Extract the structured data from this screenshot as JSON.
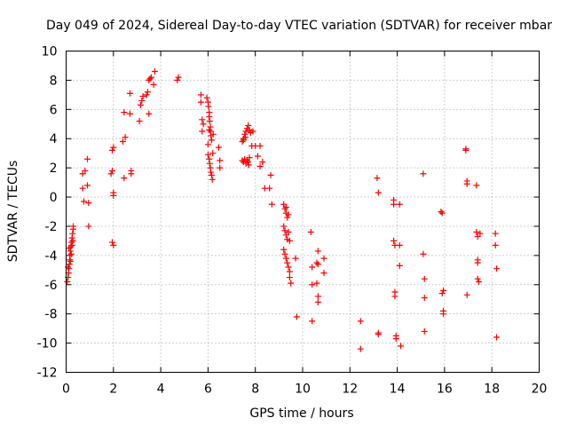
{
  "chart_data": {
    "type": "scatter",
    "title": "Day 049 of 2024, Sidereal Day-to-day VTEC variation (SDTVAR) for receiver mbar",
    "xlabel": "GPS time / hours",
    "ylabel": "SDTVAR / TECUs",
    "xlim": [
      0,
      20
    ],
    "ylim": [
      -12,
      10
    ],
    "xticks": [
      0,
      2,
      4,
      6,
      8,
      10,
      12,
      14,
      16,
      18,
      20
    ],
    "yticks": [
      -12,
      -10,
      -8,
      -6,
      -4,
      -2,
      0,
      2,
      4,
      6,
      8,
      10
    ],
    "grid": true,
    "marker": "+",
    "color": "#ff0000",
    "series": [
      {
        "name": "SDTVAR",
        "points": [
          [
            0.05,
            -5.8
          ],
          [
            0.08,
            -5.5
          ],
          [
            0.1,
            -5.2
          ],
          [
            0.12,
            -4.9
          ],
          [
            0.14,
            -4.6
          ],
          [
            0.15,
            -4.3
          ],
          [
            0.16,
            -4.0
          ],
          [
            0.18,
            -3.7
          ],
          [
            0.2,
            -3.4
          ],
          [
            0.22,
            -3.1
          ],
          [
            0.25,
            -2.8
          ],
          [
            0.27,
            -2.5
          ],
          [
            0.3,
            -2.2
          ],
          [
            0.3,
            -2.0
          ],
          [
            0.12,
            -3.5
          ],
          [
            0.18,
            -4.4
          ],
          [
            0.22,
            -3.9
          ],
          [
            0.25,
            -3.3
          ],
          [
            0.08,
            -4.8
          ],
          [
            0.28,
            -3.0
          ],
          [
            0.7,
            0.6
          ],
          [
            0.7,
            1.6
          ],
          [
            0.75,
            -0.3
          ],
          [
            0.8,
            1.8
          ],
          [
            0.9,
            0.8
          ],
          [
            0.9,
            2.6
          ],
          [
            0.95,
            -0.4
          ],
          [
            0.95,
            -2.0
          ],
          [
            1.9,
            1.6
          ],
          [
            1.95,
            1.8
          ],
          [
            1.95,
            -3.1
          ],
          [
            2.0,
            -3.3
          ],
          [
            2.0,
            0.1
          ],
          [
            2.0,
            0.3
          ],
          [
            1.95,
            3.2
          ],
          [
            2.0,
            3.4
          ],
          [
            2.4,
            3.8
          ],
          [
            2.45,
            1.3
          ],
          [
            2.45,
            5.8
          ],
          [
            2.5,
            4.1
          ],
          [
            2.7,
            5.7
          ],
          [
            2.7,
            7.1
          ],
          [
            2.75,
            1.6
          ],
          [
            2.75,
            1.8
          ],
          [
            3.1,
            5.2
          ],
          [
            3.15,
            6.3
          ],
          [
            3.2,
            6.6
          ],
          [
            3.25,
            6.9
          ],
          [
            3.4,
            7.0
          ],
          [
            3.45,
            7.2
          ],
          [
            3.5,
            5.7
          ],
          [
            3.5,
            8.0
          ],
          [
            3.55,
            8.1
          ],
          [
            3.6,
            8.2
          ],
          [
            3.7,
            7.7
          ],
          [
            3.75,
            8.6
          ],
          [
            4.7,
            8.0
          ],
          [
            4.75,
            8.2
          ],
          [
            5.7,
            7.0
          ],
          [
            5.7,
            6.5
          ],
          [
            5.75,
            5.3
          ],
          [
            5.75,
            4.5
          ],
          [
            5.8,
            5.0
          ],
          [
            5.95,
            6.8
          ],
          [
            6.0,
            6.5
          ],
          [
            6.02,
            6.2
          ],
          [
            6.05,
            5.8
          ],
          [
            6.05,
            5.5
          ],
          [
            6.07,
            5.2
          ],
          [
            6.1,
            4.8
          ],
          [
            6.1,
            4.5
          ],
          [
            6.12,
            4.2
          ],
          [
            6.15,
            3.9
          ],
          [
            6.0,
            3.6
          ],
          [
            6.0,
            2.9
          ],
          [
            6.05,
            2.6
          ],
          [
            6.07,
            2.3
          ],
          [
            6.1,
            2.0
          ],
          [
            6.12,
            1.7
          ],
          [
            6.15,
            1.5
          ],
          [
            6.18,
            1.2
          ],
          [
            6.2,
            3.0
          ],
          [
            6.22,
            4.3
          ],
          [
            6.05,
            4.6
          ],
          [
            6.45,
            3.4
          ],
          [
            6.5,
            2.5
          ],
          [
            6.5,
            2.0
          ],
          [
            7.45,
            3.8
          ],
          [
            7.5,
            4.0
          ],
          [
            7.5,
            2.4
          ],
          [
            7.55,
            4.3
          ],
          [
            7.55,
            2.6
          ],
          [
            7.6,
            4.5
          ],
          [
            7.6,
            2.3
          ],
          [
            7.65,
            4.7
          ],
          [
            7.65,
            2.5
          ],
          [
            7.7,
            4.9
          ],
          [
            7.7,
            2.4
          ],
          [
            7.72,
            2.2
          ],
          [
            7.75,
            4.6
          ],
          [
            7.75,
            2.7
          ],
          [
            7.45,
            2.5
          ],
          [
            7.5,
            3.9
          ],
          [
            7.8,
            4.4
          ],
          [
            7.58,
            4.1
          ],
          [
            7.85,
            3.5
          ],
          [
            7.9,
            4.5
          ],
          [
            8.0,
            3.5
          ],
          [
            8.1,
            2.8
          ],
          [
            8.2,
            2.1
          ],
          [
            8.2,
            3.5
          ],
          [
            8.3,
            2.4
          ],
          [
            8.4,
            0.6
          ],
          [
            8.6,
            0.6
          ],
          [
            8.65,
            1.5
          ],
          [
            8.7,
            -0.5
          ],
          [
            9.2,
            -0.5
          ],
          [
            9.25,
            -0.8
          ],
          [
            9.3,
            -1.1
          ],
          [
            9.35,
            -1.4
          ],
          [
            9.2,
            -2.0
          ],
          [
            9.25,
            -2.3
          ],
          [
            9.3,
            -2.6
          ],
          [
            9.35,
            -2.9
          ],
          [
            9.2,
            -3.6
          ],
          [
            9.25,
            -3.9
          ],
          [
            9.3,
            -4.2
          ],
          [
            9.35,
            -4.5
          ],
          [
            9.4,
            -4.8
          ],
          [
            9.45,
            -5.1
          ],
          [
            9.45,
            -5.5
          ],
          [
            9.5,
            -5.9
          ],
          [
            9.3,
            -0.7
          ],
          [
            9.4,
            -1.2
          ],
          [
            9.4,
            -2.4
          ],
          [
            9.45,
            -3.0
          ],
          [
            9.7,
            -4.2
          ],
          [
            9.75,
            -8.2
          ],
          [
            10.35,
            -2.4
          ],
          [
            10.4,
            -4.8
          ],
          [
            10.4,
            -6.0
          ],
          [
            10.4,
            -8.5
          ],
          [
            10.6,
            -4.5
          ],
          [
            10.6,
            -5.9
          ],
          [
            10.65,
            -3.7
          ],
          [
            10.65,
            -4.6
          ],
          [
            10.65,
            -6.8
          ],
          [
            10.65,
            -7.2
          ],
          [
            10.9,
            -4.2
          ],
          [
            10.9,
            -5.2
          ],
          [
            12.45,
            -8.5
          ],
          [
            12.45,
            -10.4
          ],
          [
            13.15,
            1.3
          ],
          [
            13.2,
            0.3
          ],
          [
            13.2,
            -9.3
          ],
          [
            13.2,
            -9.4
          ],
          [
            13.85,
            -0.2
          ],
          [
            13.85,
            -0.5
          ],
          [
            13.85,
            -3.0
          ],
          [
            13.9,
            -3.3
          ],
          [
            13.9,
            -6.5
          ],
          [
            13.9,
            -6.8
          ],
          [
            13.95,
            -9.5
          ],
          [
            13.95,
            -9.7
          ],
          [
            14.1,
            -0.5
          ],
          [
            14.1,
            -3.3
          ],
          [
            14.1,
            -4.7
          ],
          [
            14.15,
            -10.2
          ],
          [
            15.1,
            1.6
          ],
          [
            15.1,
            -3.9
          ],
          [
            15.15,
            -5.6
          ],
          [
            15.15,
            -6.9
          ],
          [
            15.15,
            -9.2
          ],
          [
            15.85,
            -1.0
          ],
          [
            15.9,
            -1.1
          ],
          [
            15.9,
            -6.6
          ],
          [
            15.95,
            -6.4
          ],
          [
            15.95,
            -7.8
          ],
          [
            15.95,
            -8.0
          ],
          [
            16.9,
            3.3
          ],
          [
            16.9,
            3.2
          ],
          [
            16.95,
            0.9
          ],
          [
            16.95,
            1.1
          ],
          [
            16.95,
            -6.7
          ],
          [
            17.35,
            0.8
          ],
          [
            17.35,
            -2.4
          ],
          [
            17.4,
            -2.7
          ],
          [
            17.4,
            -4.3
          ],
          [
            17.4,
            -4.5
          ],
          [
            17.4,
            -5.6
          ],
          [
            17.45,
            -5.8
          ],
          [
            17.5,
            -2.5
          ],
          [
            18.15,
            -2.5
          ],
          [
            18.15,
            -3.3
          ],
          [
            18.2,
            -4.9
          ],
          [
            18.2,
            -9.6
          ]
        ]
      }
    ]
  }
}
